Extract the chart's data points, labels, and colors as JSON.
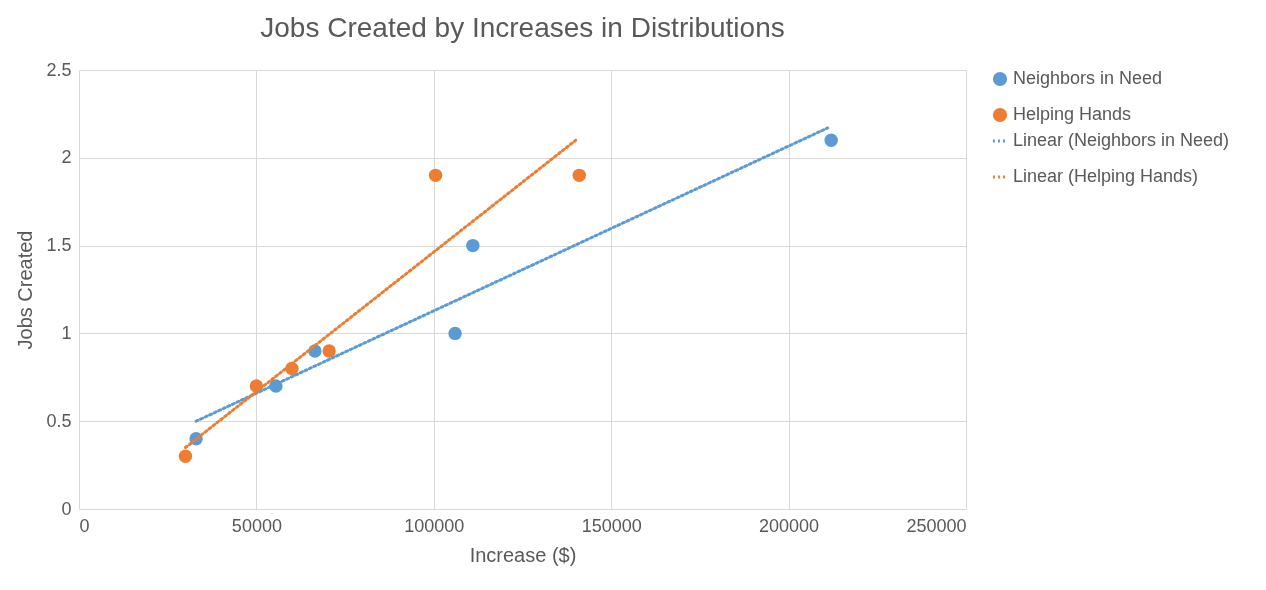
{
  "chart_data": {
    "type": "scatter",
    "title": "Jobs Created by Increases in Distributions",
    "xlabel": "Increase ($)",
    "ylabel": "Jobs Created",
    "xlim": [
      0,
      250000
    ],
    "xticks": [
      0,
      50000,
      100000,
      150000,
      200000,
      250000
    ],
    "ylim": [
      0,
      2.5
    ],
    "yticks": [
      0,
      0.5,
      1,
      1.5,
      2,
      2.5
    ],
    "grid": true,
    "legend": "right",
    "series": [
      {
        "name": "Neighbors in Need",
        "marker": "circle",
        "color": "#5b9bd5",
        "x": [
          33000,
          55500,
          60000,
          66500,
          106000,
          111000,
          212000
        ],
        "values": [
          0.4,
          0.7,
          null,
          0.9,
          1,
          1.5,
          2.1
        ]
      },
      {
        "name": "Helping Hands",
        "marker": "circle",
        "color": "#ed7d31",
        "x": [
          30000,
          50000,
          60000,
          70500,
          100500,
          141000
        ],
        "values": [
          0.3,
          0.7,
          0.8,
          0.9,
          1.9,
          1.9
        ]
      },
      {
        "name": "Linear (Neighbors in Need)",
        "type": "line",
        "line_style": "dotted",
        "color": "#5b9bd5",
        "x": [
          33000,
          211000
        ],
        "values": [
          0.5,
          2.17
        ]
      },
      {
        "name": "Linear (Helping Hands)",
        "type": "line",
        "line_style": "dotted",
        "color": "#ed7d31",
        "x": [
          30000,
          140000
        ],
        "values": [
          0.35,
          2.1
        ]
      }
    ]
  }
}
